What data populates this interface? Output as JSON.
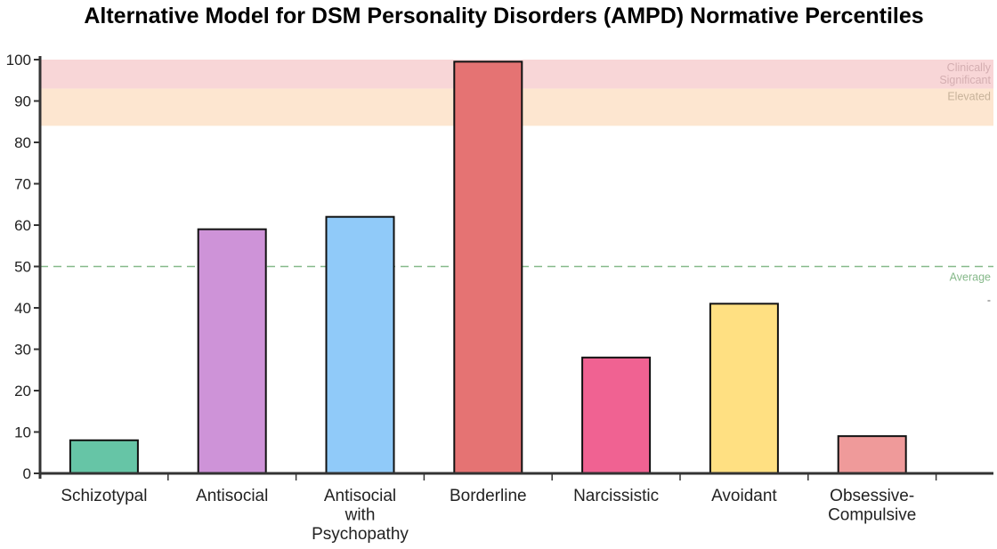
{
  "chart_data": {
    "type": "bar",
    "title": "Alternative Model for DSM Personality Disorders (AMPD) Normative Percentiles",
    "xlabel": "",
    "ylabel": "",
    "ylim": [
      0,
      100
    ],
    "yticks": [
      0,
      10,
      20,
      30,
      40,
      50,
      60,
      70,
      80,
      90,
      100
    ],
    "grid": false,
    "categories": [
      [
        "Schizotypal"
      ],
      [
        "Antisocial"
      ],
      [
        "Antisocial",
        "with",
        "Psychopathy"
      ],
      [
        "Borderline"
      ],
      [
        "Narcissistic"
      ],
      [
        "Avoidant"
      ],
      [
        "Obsessive-",
        "Compulsive"
      ]
    ],
    "values": [
      8,
      59,
      62,
      99.5,
      28,
      41,
      9
    ],
    "bar_colors": [
      "#66c5a6",
      "#ce93d8",
      "#90caf9",
      "#e57373",
      "#f06292",
      "#ffe082",
      "#ef9a9a"
    ],
    "bands": [
      {
        "from": 93,
        "to": 100,
        "color": "#f8d6d7",
        "label_lines": [
          "Clinically",
          "Significant"
        ],
        "label_color": "#d4aeb1"
      },
      {
        "from": 84,
        "to": 93,
        "color": "#fde6d0",
        "label_lines": [
          "Elevated"
        ],
        "label_color": "#c7b29a"
      }
    ],
    "reference_line": {
      "value": 50,
      "color": "#86b98a",
      "label": "Average",
      "label_color": "#86b98a",
      "secondary_mark": "-"
    }
  }
}
